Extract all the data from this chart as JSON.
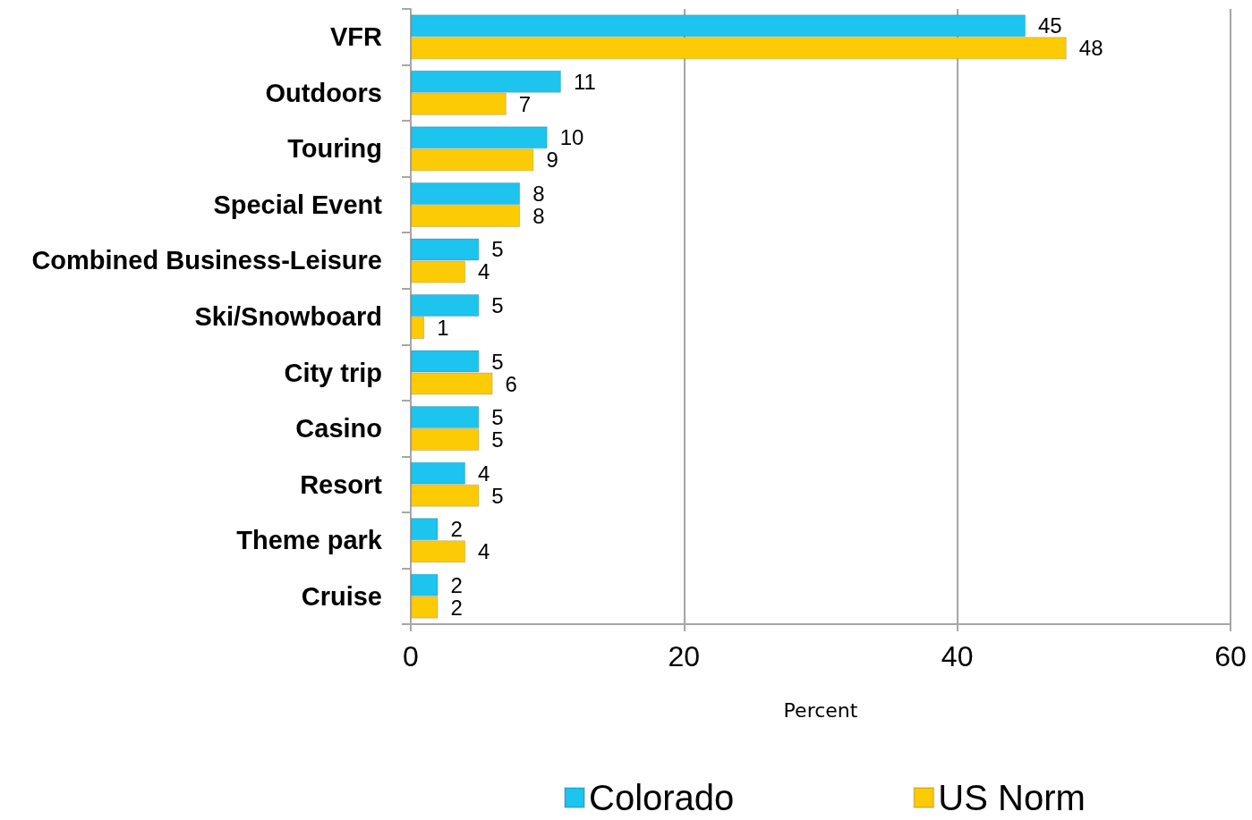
{
  "chart_data": {
    "type": "bar",
    "orientation": "horizontal",
    "categories": [
      "VFR",
      "Outdoors",
      "Touring",
      "Special Event",
      "Combined Business-Leisure",
      "Ski/Snowboard",
      "City trip",
      "Casino",
      "Resort",
      "Theme park",
      "Cruise"
    ],
    "series": [
      {
        "name": "Colorado",
        "color": "#1cc4ee",
        "values": [
          45,
          11,
          10,
          8,
          5,
          5,
          5,
          5,
          4,
          2,
          2
        ]
      },
      {
        "name": "US Norm",
        "color": "#fccb05",
        "values": [
          48,
          7,
          9,
          8,
          4,
          1,
          6,
          5,
          5,
          4,
          2
        ]
      }
    ],
    "xlabel": "Percent",
    "xlim": [
      0,
      60
    ],
    "xticks": [
      0,
      20,
      40,
      60
    ],
    "grid": "x",
    "legend": "bottom",
    "data_labels": true
  }
}
